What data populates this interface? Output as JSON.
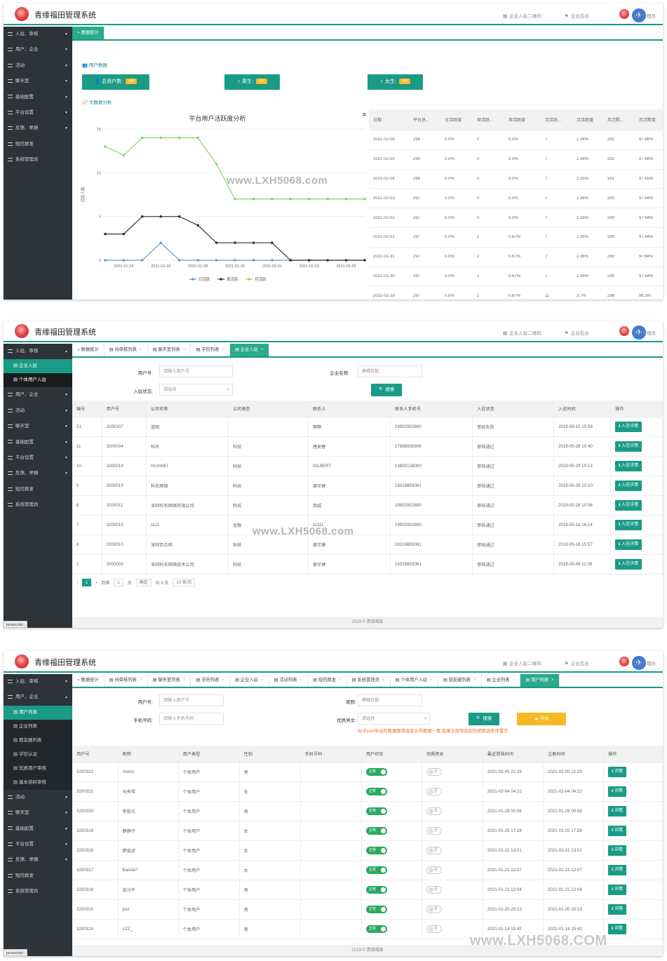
{
  "app": {
    "title": "青缘福田管理系统",
    "link_qr": "企业入驻二维码",
    "link_backend": "企业后台",
    "admin": "系统管理员",
    "footer": "2019 © 青缘福田",
    "status_bar": "javascript:;",
    "watermark": "www.LXH5068.com",
    "watermark_big": "www.LXH5068.COM"
  },
  "sidebar": {
    "items": [
      "入驻、审核",
      "用户、企业",
      "活动",
      "聊天室",
      "基础配置",
      "平台设置",
      "反馈、举报",
      "短信群发",
      "系统管理员"
    ],
    "s2_sub": [
      "企业入驻",
      "个体用户入驻"
    ],
    "s3_sub": [
      "用户列表",
      "企业列表",
      "朋友圈列表",
      "学历认证",
      "优质用户审核",
      "基本资料审核"
    ]
  },
  "s1": {
    "tab": "数据统计",
    "user_data_title": "用户数据",
    "total_label": "总用户数:",
    "total_value": "300",
    "male_label": "男生:",
    "male_value": "135",
    "female_label": "女生:",
    "female_value": "165",
    "bigdata_title": "大数据分析",
    "table_headers": [
      "日期",
      "平台总...",
      "日活跃度",
      "周活跃...",
      "周活跃度",
      "月活跃...",
      "月活跃度",
      "月沉默...",
      "月沉默度"
    ],
    "table_rows": [
      [
        "2021-02-06",
        "299",
        "0.0%",
        "0",
        "0.0%",
        "7",
        "2.34%",
        "292",
        "97.66%"
      ],
      [
        "2021-02-05",
        "299",
        "0.0%",
        "0",
        "0.0%",
        "7",
        "2.34%",
        "292",
        "97.66%"
      ],
      [
        "2021-02-04",
        "298",
        "0.0%",
        "0",
        "0.0%",
        "7",
        "2.35%",
        "291",
        "97.65%"
      ],
      [
        "2021-02-03",
        "297",
        "0.0%",
        "0",
        "0.0%",
        "7",
        "2.36%",
        "290",
        "97.64%"
      ],
      [
        "2021-02-02",
        "297",
        "0.0%",
        "0",
        "0.0%",
        "7",
        "2.36%",
        "290",
        "97.64%"
      ],
      [
        "2021-02-01",
        "297",
        "0.0%",
        "2",
        "0.67%",
        "7",
        "2.36%",
        "290",
        "97.64%"
      ],
      [
        "2021-01-31",
        "297",
        "0.0%",
        "2",
        "0.67%",
        "7",
        "2.36%",
        "290",
        "97.64%"
      ],
      [
        "2021-01-30",
        "297",
        "0.0%",
        "2",
        "0.67%",
        "7",
        "2.36%",
        "290",
        "97.64%"
      ],
      [
        "2021-01-29",
        "297",
        "0.0%",
        "2",
        "0.67%",
        "11",
        "3.7%",
        "286",
        "96.3%"
      ]
    ]
  },
  "chart_data": {
    "type": "line",
    "title": "平台用户活跃度分析",
    "ylabel": "活跃人数",
    "xlabel": "",
    "ylim": [
      0,
      15
    ],
    "yticks": [
      0,
      5,
      10,
      15
    ],
    "x": [
      "2021-01-23",
      "2021-01-24",
      "2021-01-25",
      "2021-01-26",
      "2021-01-27",
      "2021-01-28",
      "2021-01-29",
      "2021-01-30",
      "2021-01-31",
      "2021-02-01",
      "2021-02-02",
      "2021-02-03",
      "2021-02-04",
      "2021-02-05",
      "2021-02-06"
    ],
    "xtick_labels": [
      "2021-01-24",
      "2021-01-26",
      "2021-01-28",
      "2021-01-30",
      "2021-02-01",
      "2021-02-03",
      "2021-02-05"
    ],
    "series": [
      {
        "name": "日活跃",
        "color": "#5b9bd5",
        "values": [
          0,
          0,
          0,
          2,
          0,
          0,
          0,
          0,
          0,
          0,
          0,
          0,
          0,
          0,
          0
        ]
      },
      {
        "name": "周活跃",
        "color": "#333333",
        "values": [
          3,
          3,
          5,
          5,
          5,
          4,
          2,
          2,
          2,
          2,
          0,
          0,
          0,
          0,
          0
        ]
      },
      {
        "name": "月活跃",
        "color": "#8fd16a",
        "values": [
          13,
          12,
          14,
          14,
          14,
          14,
          11,
          7,
          7,
          7,
          7,
          7,
          7,
          7,
          7
        ]
      }
    ],
    "legend": "bottom-center"
  },
  "s2": {
    "tabs": [
      "数据统计",
      "待审核列表",
      "聊天室列表",
      "学历列表",
      "企业入驻"
    ],
    "user_no_label": "用户号:",
    "user_no_placeholder": "请输入用户号",
    "company_label": "企业名称:",
    "company_placeholder": "模糊匹配",
    "status_label": "入驻状态:",
    "status_placeholder": "请选择",
    "search": "搜索",
    "headers": [
      "编号",
      "用户号",
      "公司名称",
      "公司类型",
      "联系人",
      "联系人手机号",
      "入驻状态",
      "入驻时间",
      "操作"
    ],
    "rows": [
      [
        "51",
        "3200107",
        "蓝翔",
        "",
        "啊啊",
        "19902902880",
        "审核失败",
        "2019-08-15 15:58"
      ],
      [
        "11",
        "3200034",
        "科名",
        "科技",
        "唐更春",
        "17688935908",
        "审核通过",
        "2019-05-28 10:40"
      ],
      [
        "10",
        "3200014",
        "HUAWEI",
        "科技",
        "GILBERT",
        "13800138000",
        "审核通过",
        "2019-05-28 10:13"
      ],
      [
        "9",
        "3200019",
        "科名网络",
        "科技",
        "黄宇建",
        "18319893061",
        "审核通过",
        "2019-05-28 10:10"
      ],
      [
        "8",
        "3200011",
        "深圳科名网络有限公司",
        "科技",
        "周威",
        "19902902880",
        "审核通过",
        "2019-05-28 10:06"
      ],
      [
        "7",
        "3200015",
        "1111",
        "金融",
        "11111",
        "19902902880",
        "审核通过",
        "2019-05-16 16:14"
      ],
      [
        "6",
        "3200010",
        "深圳百合网",
        "科技",
        "黄宇建",
        "18319893061",
        "审核通过",
        "2019-05-16 15:57"
      ],
      [
        "1",
        "3200003",
        "深圳科名网络技术公司",
        "科技",
        "黄宇建",
        "18319893061",
        "审核通过",
        "2019-05-06 11:09"
      ]
    ],
    "action": "入驻详情",
    "pager": {
      "page": "1",
      "goto": "到第",
      "page_unit": "页",
      "confirm": "确定",
      "total": "共 8 条",
      "per_page": "10 条/页"
    }
  },
  "s3": {
    "tabs": [
      "数据统计",
      "待审核列表",
      "聊天室列表",
      "学历列表",
      "企业入驻",
      "活动列表",
      "短信群发",
      "系统管理员",
      "个体用户入驻",
      "朋友圈列表",
      "企业列表",
      "用户列表"
    ],
    "user_no_label": "用户号:",
    "user_no_placeholder": "请输入用户号",
    "nick_label": "昵称:",
    "nick_placeholder": "模糊匹配",
    "phone_label": "手机号码:",
    "phone_placeholder": "请输入手机号码",
    "quality_label": "优质男女:",
    "quality_placeholder": "请选择",
    "search": "搜索",
    "export": "导出",
    "tip": "tip:Excel导出的数据跟筛选显示的数据一致,如果全部导出则先把筛选条件置空",
    "headers": [
      "用户号",
      "昵称",
      "用户类型",
      "性别",
      "手机号码",
      "用户状态",
      "优质男女",
      "最近登陆时间",
      "注册时间",
      "操作"
    ],
    "rows": [
      [
        "3200322",
        "momo",
        "个体用户",
        "男",
        "",
        "2021-02-05 22:29",
        "2021-02-05 22:29"
      ],
      [
        "3200321",
        "马秀琴",
        "个体用户",
        "女",
        "",
        "2021-02-04 04:22",
        "2021-02-04 04:22"
      ],
      [
        "3200320",
        "李驶元",
        "个体用户",
        "男",
        "",
        "2021-01-28 00:58",
        "2021-01-28 00:58"
      ],
      [
        "3200319",
        "静静子",
        "个体用户",
        "女",
        "",
        "2021-01-25 17:28",
        "2021-01-25 17:28"
      ],
      [
        "3200318",
        "廖俊谚",
        "个体用户",
        "女",
        "",
        "2021-01-21 13:01",
        "2021-01-21 13:01"
      ],
      [
        "3200317",
        "Bassie?",
        "个体用户",
        "女",
        "",
        "2021-01-21 12:07",
        "2021-01-21 12:07"
      ],
      [
        "3200316",
        "金沙牛",
        "个体用户",
        "男",
        "",
        "2021-01-21 12:04",
        "2021-01-21 12:04"
      ],
      [
        "3200315",
        "just",
        "个体用户",
        "男",
        "",
        "2021-01-20 20:13",
        "2021-01-20 20:13"
      ],
      [
        "3200314",
        "LZZ_",
        "个体用户",
        "男",
        "",
        "2021-01-14 15:42",
        "2021-01-14 15:42"
      ]
    ],
    "status_on": "正常",
    "quality_off": "否",
    "action": "详情"
  }
}
